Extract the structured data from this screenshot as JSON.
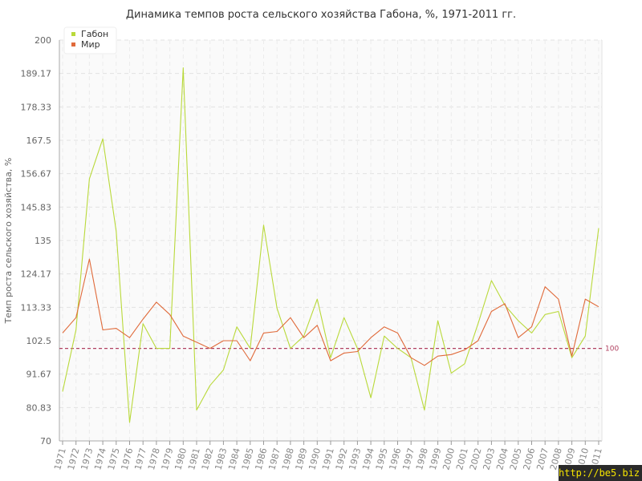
{
  "chart_data": {
    "type": "line",
    "title": "Динамика темпов роста сельского хозяйства Габона, %, 1971-2011 гг.",
    "xlabel": "",
    "ylabel": "Темп роста сельского хозяйства, %",
    "ylim": [
      70,
      200
    ],
    "yticks": [
      "70",
      "80.83",
      "91.67",
      "102.5",
      "113.33",
      "124.17",
      "135",
      "145.83",
      "156.67",
      "167.5",
      "178.33",
      "189.17",
      "200"
    ],
    "categories": [
      "1971",
      "1972",
      "1973",
      "1974",
      "1975",
      "1976",
      "1977",
      "1978",
      "1979",
      "1980",
      "1981",
      "1982",
      "1983",
      "1984",
      "1985",
      "1986",
      "1987",
      "1988",
      "1989",
      "1990",
      "1991",
      "1992",
      "1993",
      "1994",
      "1995",
      "1996",
      "1997",
      "1998",
      "1999",
      "2000",
      "2001",
      "2002",
      "2003",
      "2004",
      "2005",
      "2006",
      "2007",
      "2008",
      "2009",
      "2010",
      "2011"
    ],
    "series": [
      {
        "name": "Габон",
        "color": "#b9d93a",
        "values": [
          86,
          106,
          155,
          168,
          138,
          76,
          108,
          100,
          100,
          191,
          80,
          88,
          93,
          107,
          100,
          140,
          113,
          100,
          104,
          116,
          97,
          110,
          100,
          84,
          104,
          100,
          97,
          80,
          109,
          92,
          95,
          108,
          122,
          114,
          109,
          105,
          111,
          112,
          97,
          104,
          139
        ]
      },
      {
        "name": "Мир",
        "color": "#e06a3a",
        "values": [
          105,
          110,
          129,
          106,
          106.5,
          103.5,
          109.5,
          115,
          111,
          104,
          102,
          100,
          102.5,
          102.5,
          96,
          105,
          105.5,
          110,
          103.5,
          107.5,
          96,
          98.5,
          99,
          103.5,
          107,
          105,
          97,
          94.5,
          97.5,
          98,
          99.5,
          102.5,
          112,
          114.5,
          103.5,
          107,
          120,
          116,
          97.5,
          116,
          113.5
        ]
      }
    ],
    "reference_line": {
      "value": 100,
      "label": "100",
      "color": "#b04060"
    },
    "legend_position": "top-left",
    "grid": true
  },
  "watermark": "http://be5.biz"
}
